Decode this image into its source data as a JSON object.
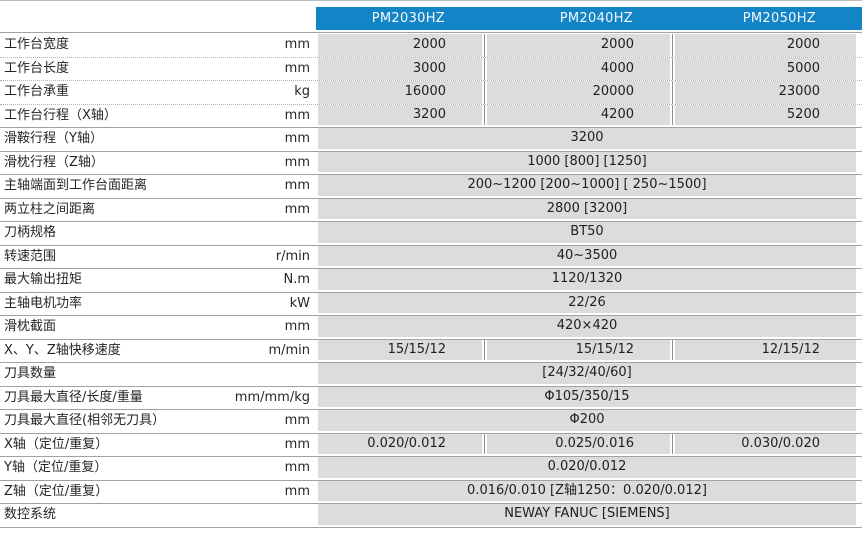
{
  "colors": {
    "accent_blue": "#1385c6",
    "cell_bg": "#dcdcdc",
    "solid_line": "#a2a2a2",
    "dotted_line": "#b4b4b4",
    "header_text": "#f4f9fc",
    "body_text": "#262626"
  },
  "header": {
    "models": [
      "PM2030HZ",
      "PM2040HZ",
      "PM2050HZ"
    ]
  },
  "rows": [
    {
      "label": "工作台宽度",
      "unit": "mm",
      "values": [
        "2000",
        "2000",
        "2000"
      ],
      "sep": "dotted"
    },
    {
      "label": "工作台长度",
      "unit": "mm",
      "values": [
        "3000",
        "4000",
        "5000"
      ],
      "sep": "dotted"
    },
    {
      "label": "工作台承重",
      "unit": "kg",
      "values": [
        "16000",
        "20000",
        "23000"
      ],
      "sep": "dotted"
    },
    {
      "label": "工作台行程（X轴）",
      "unit": "mm",
      "values": [
        "3200",
        "4200",
        "5200"
      ],
      "sep": "solid"
    },
    {
      "label": "滑鞍行程（Y轴）",
      "unit": "mm",
      "span": "3200",
      "sep": "solid"
    },
    {
      "label": "滑枕行程（Z轴）",
      "unit": "mm",
      "span": "1000 [800] [1250]",
      "sep": "solid"
    },
    {
      "label": "主轴端面到工作台面距离",
      "unit": "mm",
      "span": "200~1200 [200~1000] [ 250~1500]",
      "sep": "solid"
    },
    {
      "label": "两立柱之间距离",
      "unit": "mm",
      "span": "2800 [3200]",
      "sep": "solid"
    },
    {
      "label": "刀柄规格",
      "unit": "",
      "span": "BT50",
      "sep": "solid"
    },
    {
      "label": "转速范围",
      "unit": "r/min",
      "span": "40~3500",
      "sep": "solid"
    },
    {
      "label": "最大输出扭矩",
      "unit": "N.m",
      "span": "1120/1320",
      "sep": "solid"
    },
    {
      "label": "主轴电机功率",
      "unit": "kW",
      "span": "22/26",
      "sep": "solid"
    },
    {
      "label": "滑枕截面",
      "unit": "mm",
      "span": "420×420",
      "sep": "solid"
    },
    {
      "label": "X、Y、Z轴快移速度",
      "unit": "m/min",
      "values": [
        "15/15/12",
        "15/15/12",
        "12/15/12"
      ],
      "sep": "solid"
    },
    {
      "label": "刀具数量",
      "unit": "",
      "span": "[24/32/40/60]",
      "sep": "solid"
    },
    {
      "label": "刀具最大直径/长度/重量",
      "unit": "mm/mm/kg",
      "span": "Φ105/350/15",
      "sep": "solid"
    },
    {
      "label": "刀具最大直径(相邻无刀具）",
      "unit": "mm",
      "span": "Φ200",
      "sep": "solid"
    },
    {
      "label": "X轴（定位/重复）",
      "unit": "mm",
      "values": [
        "0.020/0.012",
        "0.025/0.016",
        "0.030/0.020"
      ],
      "sep": "solid"
    },
    {
      "label": "Y轴（定位/重复）",
      "unit": "mm",
      "span": "0.020/0.012",
      "sep": "solid"
    },
    {
      "label": "Z轴（定位/重复）",
      "unit": "mm",
      "span": "0.016/0.010 [Z轴1250：0.020/0.012]",
      "sep": "solid"
    },
    {
      "label": "数控系统",
      "unit": "",
      "span": "NEWAY FANUC  [SIEMENS]",
      "sep": "solid"
    }
  ]
}
